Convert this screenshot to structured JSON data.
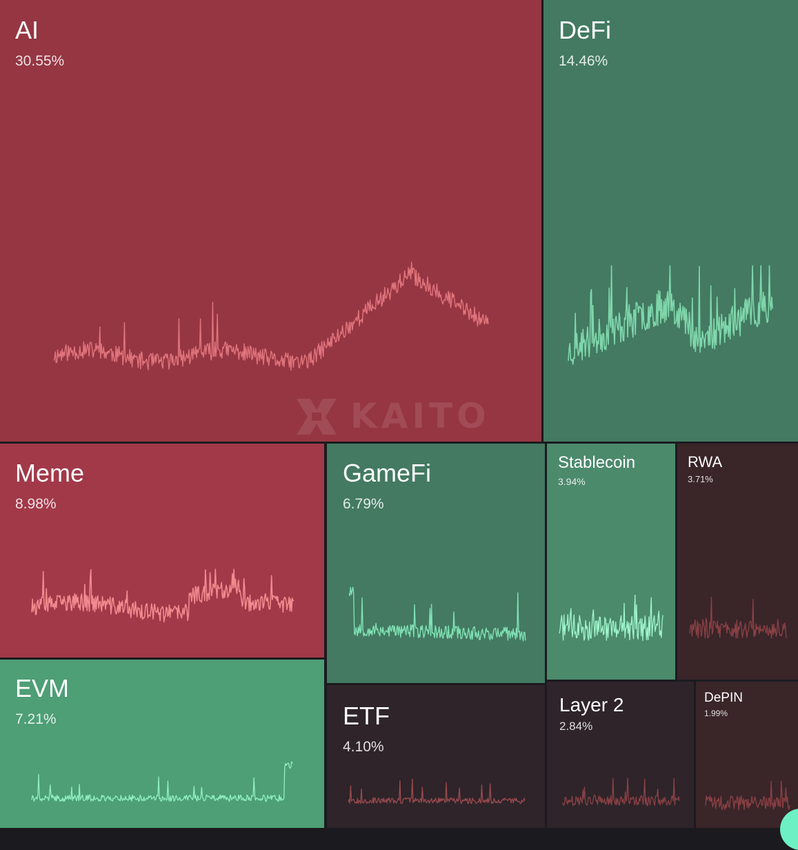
{
  "brand": {
    "watermark": "KAITO"
  },
  "colors": {
    "red_strong": "#963643",
    "red_medium": "#a13949",
    "green_medium": "#437a61",
    "green_bright": "#4e9e76",
    "green_stablecoin": "#4c8a6c",
    "dark_red": "#3a2529",
    "dark_neutral": "#2e2429"
  },
  "chart_data": {
    "type": "treemap",
    "title": "",
    "series": [
      {
        "name": "AI",
        "value_pct": 30.55,
        "label": "30.55%",
        "trend": "down"
      },
      {
        "name": "DeFi",
        "value_pct": 14.46,
        "label": "14.46%",
        "trend": "up"
      },
      {
        "name": "Meme",
        "value_pct": 8.98,
        "label": "8.98%",
        "trend": "down"
      },
      {
        "name": "EVM",
        "value_pct": 7.21,
        "label": "7.21%",
        "trend": "up"
      },
      {
        "name": "GameFi",
        "value_pct": 6.79,
        "label": "6.79%",
        "trend": "up"
      },
      {
        "name": "ETF",
        "value_pct": 4.1,
        "label": "4.10%",
        "trend": "flat-down"
      },
      {
        "name": "Stablecoin",
        "value_pct": 3.94,
        "label": "3.94%",
        "trend": "up"
      },
      {
        "name": "RWA",
        "value_pct": 3.71,
        "label": "3.71%",
        "trend": "flat-down"
      },
      {
        "name": "Layer 2",
        "value_pct": 2.84,
        "label": "2.84%",
        "trend": "flat-down"
      },
      {
        "name": "DePIN",
        "value_pct": 1.99,
        "label": "1.99%",
        "trend": "flat-down"
      }
    ]
  }
}
